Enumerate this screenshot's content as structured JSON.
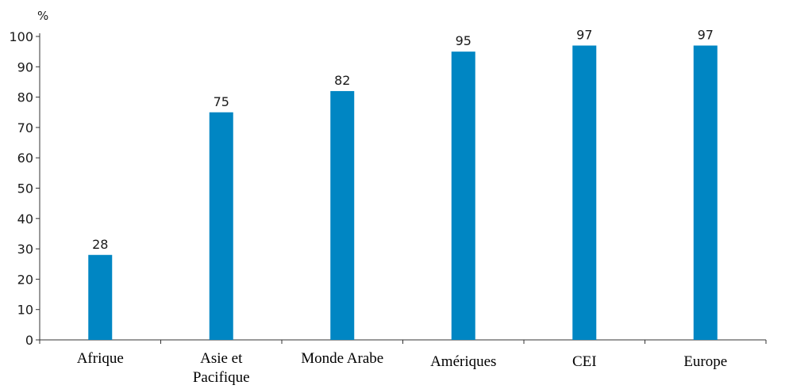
{
  "chart_data": {
    "type": "bar",
    "title": "",
    "xlabel": "",
    "ylabel": "%",
    "categories": [
      [
        "Afrique"
      ],
      [
        "Asie et",
        "Pacifique"
      ],
      [
        "Monde Arabe"
      ],
      [
        "Amériques"
      ],
      [
        "CEI"
      ],
      [
        "Europe"
      ]
    ],
    "values": [
      28,
      75,
      82,
      95,
      97,
      97
    ],
    "data_labels": [
      "28",
      "75",
      "82",
      "95",
      "97",
      "97"
    ],
    "ylim": [
      0,
      100
    ],
    "yticks": [
      "0",
      "10",
      "20",
      "30",
      "40",
      "50",
      "60",
      "70",
      "80",
      "90",
      "100"
    ],
    "grid": false,
    "legend": "none",
    "bar_color": "#0086c3"
  }
}
